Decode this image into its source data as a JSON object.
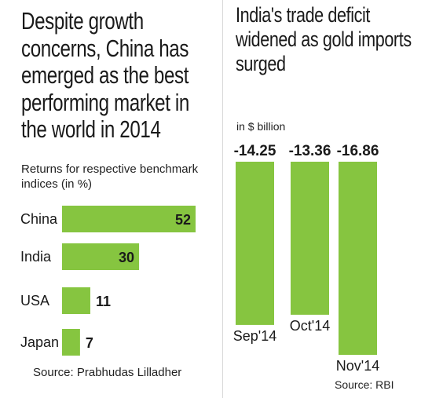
{
  "chart_data": [
    {
      "type": "bar",
      "orientation": "horizontal",
      "title": "Despite growth concerns, China has emerged as the best performing market in the world in 2014",
      "subtitle": "Returns for respective benchmark indices (in %)",
      "categories": [
        "China",
        "India",
        "USA",
        "Japan"
      ],
      "values": [
        52,
        30,
        11,
        7
      ],
      "value_labels": [
        "52",
        "30",
        "11",
        "7"
      ],
      "xlim": [
        0,
        52
      ],
      "grid": false,
      "legend": "none",
      "source": "Source: Prabhudas Lilladher"
    },
    {
      "type": "bar",
      "orientation": "vertical-downward",
      "title": "India's trade deficit widened as gold imports surged",
      "unit_label": "in $ billion",
      "categories": [
        "Sep'14",
        "Oct'14",
        "Nov'14"
      ],
      "values": [
        -14.25,
        -13.36,
        -16.86
      ],
      "value_labels": [
        "-14.25",
        "-13.36",
        "-16.86"
      ],
      "ylim": [
        -16.86,
        0
      ],
      "grid": false,
      "legend": "none",
      "source": "Source: RBI"
    }
  ],
  "colors": {
    "bar_fill": "#86c540",
    "text": "#1a1a1a",
    "divider": "#d9d9d9"
  }
}
